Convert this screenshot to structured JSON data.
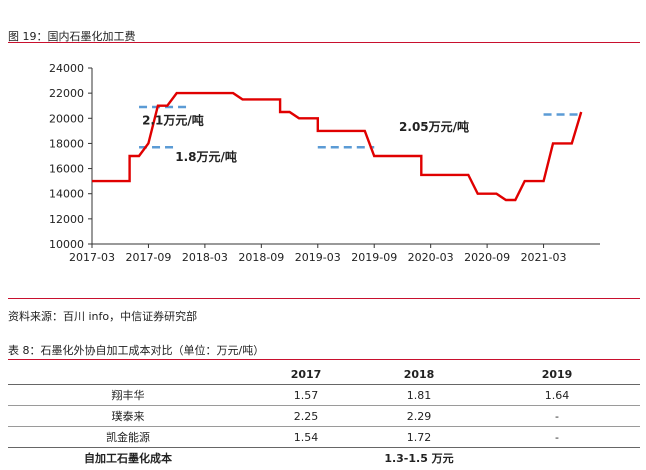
{
  "figure": {
    "title": "图 19：国内石墨化加工费",
    "source": "资料来源：百川 info，中信证券研究部"
  },
  "chart_data": {
    "type": "line",
    "title": "",
    "xlabel": "",
    "ylabel": "",
    "ylim": [
      10000,
      24000
    ],
    "yticks": [
      10000,
      12000,
      14000,
      16000,
      18000,
      20000,
      22000,
      24000
    ],
    "xticks": [
      "2017-03",
      "2017-09",
      "2018-03",
      "2018-09",
      "2019-03",
      "2019-09",
      "2020-03",
      "2020-09",
      "2021-03"
    ],
    "grid": false,
    "legend": "none",
    "series": [
      {
        "color": "#e00000",
        "points": [
          [
            "2017-03",
            15000
          ],
          [
            "2017-07",
            15000
          ],
          [
            "2017-07",
            17000
          ],
          [
            "2017-08",
            17000
          ],
          [
            "2017-09",
            18000
          ],
          [
            "2017-10",
            21000
          ],
          [
            "2017-11",
            21000
          ],
          [
            "2017-12",
            22000
          ],
          [
            "2018-01",
            22000
          ],
          [
            "2018-06",
            22000
          ],
          [
            "2018-07",
            21500
          ],
          [
            "2018-09",
            21500
          ],
          [
            "2018-11",
            21500
          ],
          [
            "2018-11",
            20500
          ],
          [
            "2018-12",
            20500
          ],
          [
            "2019-01",
            20000
          ],
          [
            "2019-03",
            20000
          ],
          [
            "2019-03",
            19000
          ],
          [
            "2019-08",
            19000
          ],
          [
            "2019-09",
            17000
          ],
          [
            "2020-02",
            17000
          ],
          [
            "2020-02",
            15500
          ],
          [
            "2020-07",
            15500
          ],
          [
            "2020-08",
            14000
          ],
          [
            "2020-10",
            14000
          ],
          [
            "2020-11",
            13500
          ],
          [
            "2020-12",
            13500
          ],
          [
            "2021-01",
            15000
          ],
          [
            "2021-03",
            15000
          ],
          [
            "2021-04",
            18000
          ],
          [
            "2021-06",
            18000
          ],
          [
            "2021-07",
            20500
          ],
          [
            "2021-07",
            20500
          ]
        ]
      }
    ],
    "reference_lines": [
      {
        "label": "1.8万元/吨",
        "value": 17700,
        "x_from": "2017-08",
        "x_to": "2017-12",
        "color": "#5b9bd5"
      },
      {
        "label": "2.1万元/吨",
        "value": 20900,
        "x_from": "2017-08",
        "x_to": "2018-01",
        "color": "#5b9bd5"
      },
      {
        "label": "",
        "value": 17700,
        "x_from": "2019-03",
        "x_to": "2019-09",
        "color": "#5b9bd5"
      },
      {
        "label": "2.05万元/吨",
        "value": 20300,
        "x_from": "2021-03",
        "x_to": "2021-07",
        "color": "#5b9bd5"
      }
    ]
  },
  "table": {
    "title": "表 8：石墨化外协自加工成本对比（单位：万元/吨）",
    "headers": [
      "",
      "2017",
      "2018",
      "2019"
    ],
    "rows": [
      [
        "翔丰华",
        "1.57",
        "1.81",
        "1.64"
      ],
      [
        "璞泰来",
        "2.25",
        "2.29",
        "-"
      ],
      [
        "凯金能源",
        "1.54",
        "1.72",
        "-"
      ]
    ],
    "total": [
      "自加工石墨化成本",
      "1.3-1.5 万元",
      "",
      ""
    ]
  }
}
